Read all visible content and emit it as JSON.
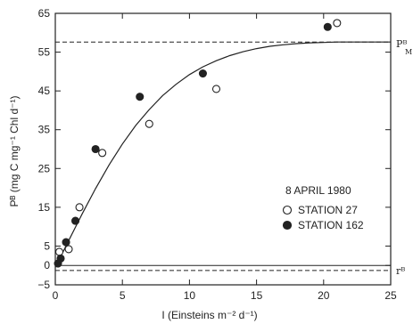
{
  "chart_data": {
    "type": "scatter",
    "title": "",
    "xlabel": "I (Einsteins m⁻² d⁻¹)",
    "ylabel": "Pᴮ (mg C mg⁻¹ Chl d⁻¹)",
    "xlim": [
      0,
      25
    ],
    "ylim": [
      -5,
      65
    ],
    "x_ticks": [
      0,
      5,
      10,
      15,
      20,
      25
    ],
    "y_ticks": [
      -5,
      0,
      5,
      15,
      25,
      35,
      45,
      55,
      65
    ],
    "x_tick_labels": [
      "0",
      "5",
      "10",
      "15",
      "20",
      "25"
    ],
    "y_tick_labels": [
      "−5",
      "0",
      "5",
      "15",
      "25",
      "35",
      "45",
      "55",
      "65"
    ],
    "grid": false,
    "annotation": "8 APRIL 1980",
    "series": [
      {
        "name": "STATION 27",
        "marker": "open-circle",
        "points": [
          [
            0.3,
            3.5
          ],
          [
            1.0,
            4.2
          ],
          [
            1.8,
            15.0
          ],
          [
            3.5,
            29.0
          ],
          [
            7.0,
            36.5
          ],
          [
            12.0,
            45.5
          ],
          [
            21.0,
            62.5
          ]
        ]
      },
      {
        "name": "STATION 162",
        "marker": "filled-circle",
        "points": [
          [
            0.2,
            0.5
          ],
          [
            0.4,
            1.8
          ],
          [
            0.8,
            6.0
          ],
          [
            1.5,
            11.5
          ],
          [
            3.0,
            30.0
          ],
          [
            6.3,
            43.5
          ],
          [
            11.0,
            49.5
          ],
          [
            20.3,
            61.5
          ]
        ]
      }
    ],
    "fit_curve": {
      "description": "saturating photosynthesis-light curve",
      "x": [
        0,
        1,
        2,
        3,
        4,
        5,
        6,
        7,
        8,
        9,
        10,
        11,
        12,
        13,
        14,
        15,
        16,
        17,
        18,
        19,
        20,
        21,
        22,
        23,
        24,
        25
      ],
      "y": [
        -0.5,
        6.4,
        13.3,
        19.8,
        25.9,
        31.3,
        36.1,
        40.2,
        43.8,
        46.7,
        49.2,
        51.2,
        52.8,
        54.1,
        55.1,
        55.9,
        56.5,
        56.9,
        57.2,
        57.4,
        57.5,
        57.6,
        57.6,
        57.6,
        57.6,
        57.6
      ]
    },
    "reference_lines": [
      {
        "label": "Pᴮ",
        "sub": "M",
        "y": 57.6,
        "style": "dashed"
      },
      {
        "label": "rᴮ",
        "sub": "",
        "y": -1.3,
        "style": "dashed"
      }
    ],
    "zero_line": {
      "y": 0,
      "style": "solid"
    }
  },
  "colors": {
    "ink": "#222222",
    "paper": "#ffffff"
  }
}
